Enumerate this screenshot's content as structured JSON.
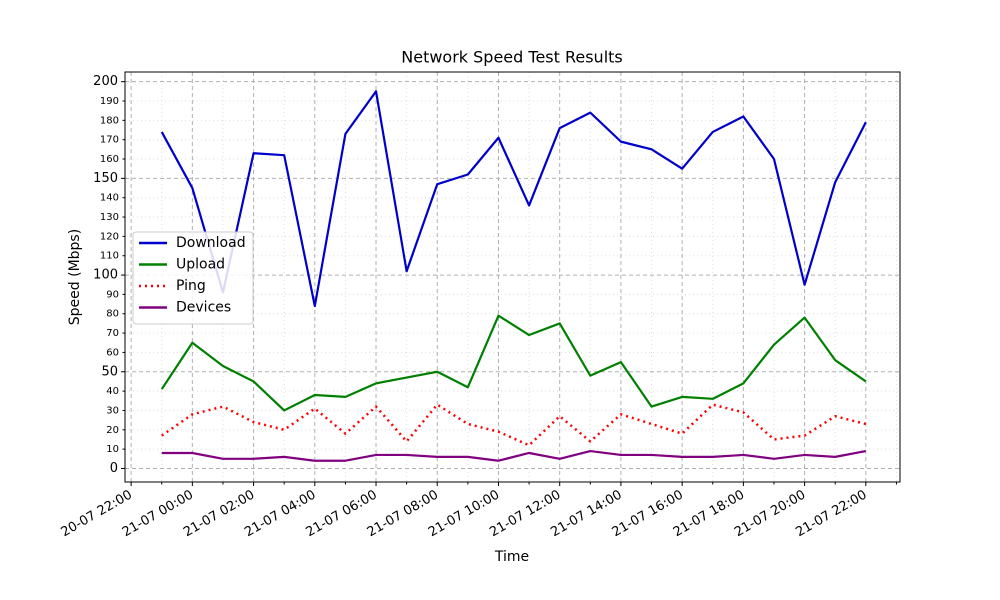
{
  "chart_data": {
    "type": "line",
    "title": "Network Speed Test Results",
    "x_label": "Time",
    "y_label": "Speed (Mbps)",
    "x": [
      "20-07 23:00",
      "21-07 00:00",
      "21-07 01:00",
      "21-07 02:00",
      "21-07 03:00",
      "21-07 04:00",
      "21-07 05:00",
      "21-07 06:00",
      "21-07 07:00",
      "21-07 08:00",
      "21-07 09:00",
      "21-07 10:00",
      "21-07 11:00",
      "21-07 12:00",
      "21-07 13:00",
      "21-07 14:00",
      "21-07 15:00",
      "21-07 16:00",
      "21-07 17:00",
      "21-07 18:00",
      "21-07 19:00",
      "21-07 20:00",
      "21-07 21:00",
      "21-07 22:00"
    ],
    "series": [
      {
        "name": "Download",
        "color": "#0000cd",
        "style": "solid",
        "values": [
          174,
          145,
          91,
          163,
          162,
          84,
          173,
          195,
          102,
          147,
          152,
          171,
          136,
          176,
          184,
          169,
          165,
          155,
          174,
          182,
          160,
          95,
          148,
          179
        ]
      },
      {
        "name": "Upload",
        "color": "#008000",
        "style": "solid",
        "values": [
          41,
          65,
          53,
          45,
          30,
          38,
          37,
          44,
          47,
          50,
          42,
          79,
          69,
          75,
          48,
          55,
          32,
          37,
          36,
          44,
          64,
          78,
          56,
          45
        ]
      },
      {
        "name": "Ping",
        "color": "#ff0000",
        "style": "dotted",
        "values": [
          17,
          28,
          32,
          24,
          20,
          31,
          18,
          32,
          14,
          33,
          23,
          19,
          12,
          27,
          14,
          28,
          23,
          18,
          33,
          29,
          15,
          17,
          27,
          23
        ]
      },
      {
        "name": "Devices",
        "color": "#800080",
        "style": "solid",
        "values": [
          8,
          8,
          5,
          5,
          6,
          4,
          4,
          7,
          7,
          6,
          6,
          4,
          8,
          5,
          9,
          7,
          7,
          6,
          6,
          7,
          5,
          7,
          6,
          9
        ]
      }
    ],
    "xlim": [
      "20-07 21:48",
      "21-07 23:07"
    ],
    "xticks": [
      "20-07 22:00",
      "21-07 00:00",
      "21-07 02:00",
      "21-07 04:00",
      "21-07 06:00",
      "21-07 08:00",
      "21-07 10:00",
      "21-07 12:00",
      "21-07 14:00",
      "21-07 16:00",
      "21-07 18:00",
      "21-07 20:00",
      "21-07 22:00"
    ],
    "xticks_minor": [
      "20-07 23:00",
      "21-07 01:00",
      "21-07 03:00",
      "21-07 05:00",
      "21-07 07:00",
      "21-07 09:00",
      "21-07 11:00",
      "21-07 13:00",
      "21-07 15:00",
      "21-07 17:00",
      "21-07 19:00",
      "21-07 21:00",
      "21-07 23:00"
    ],
    "ylim": [
      -7,
      205
    ],
    "yticks": [
      0,
      50,
      100,
      150,
      200
    ],
    "yticks_minor": [
      10,
      20,
      30,
      40,
      60,
      70,
      80,
      90,
      110,
      120,
      130,
      140,
      160,
      170,
      180,
      190
    ],
    "grid": true,
    "legend": "center left"
  }
}
